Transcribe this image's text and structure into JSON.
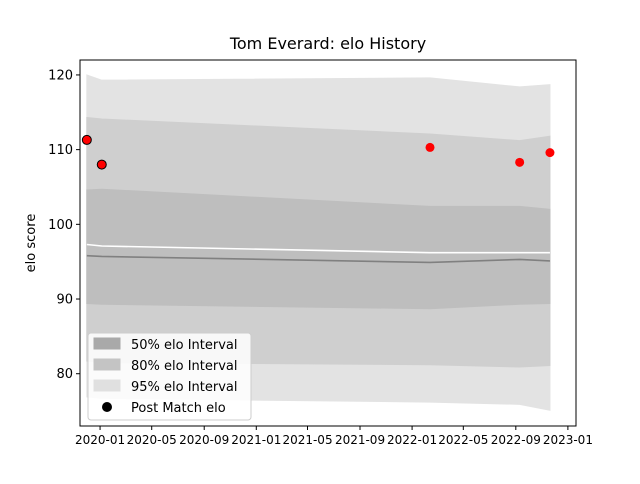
{
  "chart_data": {
    "type": "line",
    "title": "Tom Everard: elo History",
    "xlabel": "",
    "ylabel": "elo score",
    "x_axis_type": "date",
    "xlim": [
      "2019-11-15",
      "2023-01-20"
    ],
    "ylim": [
      73,
      122
    ],
    "x_ticks": [
      "2020-01",
      "2020-05",
      "2020-09",
      "2021-01",
      "2021-05",
      "2021-09",
      "2022-01",
      "2022-05",
      "2022-09",
      "2023-01"
    ],
    "y_ticks": [
      80,
      90,
      100,
      110,
      120
    ],
    "grid": false,
    "legend_position": "lower-left",
    "x": [
      "2019-12-01",
      "2020-01-05",
      "2022-02-12",
      "2022-09-10",
      "2022-11-20"
    ],
    "series": [
      {
        "name": "95% elo Interval",
        "type": "band",
        "color": "#e3e3e3",
        "upper": [
          120,
          119.3,
          119.6,
          118.4,
          118.7
        ],
        "lower": [
          76.9,
          76.7,
          76.2,
          75.9,
          75.1
        ]
      },
      {
        "name": "80% elo Interval",
        "type": "band",
        "color": "#cfcfcf",
        "upper": [
          114.3,
          114.1,
          112.1,
          111.2,
          111.8
        ],
        "lower": [
          81.7,
          81.5,
          81.2,
          80.9,
          81.1
        ]
      },
      {
        "name": "50% elo Interval",
        "type": "band",
        "color": "#bebebe",
        "upper": [
          104.6,
          104.7,
          102.4,
          102.4,
          102.0
        ],
        "lower": [
          89.4,
          89.3,
          88.7,
          89.3,
          89.4
        ]
      },
      {
        "type": "line",
        "color": "#ffffff",
        "values": [
          97.3,
          97.1,
          96.2,
          96.2,
          96.2
        ]
      },
      {
        "type": "line",
        "color": "#808080",
        "values": [
          95.8,
          95.7,
          94.9,
          95.3,
          95.1
        ]
      },
      {
        "name": "Post Match elo",
        "type": "scatter",
        "points": [
          {
            "x": "2019-12-01",
            "y": 111.3,
            "color": "#ff0000",
            "edge": "#000000"
          },
          {
            "x": "2020-01-05",
            "y": 108.0,
            "color": "#ff0000",
            "edge": "#000000"
          },
          {
            "x": "2022-02-12",
            "y": 110.3,
            "color": "#ff0000",
            "edge": "none"
          },
          {
            "x": "2022-09-10",
            "y": 108.3,
            "color": "#ff0000",
            "edge": "none"
          },
          {
            "x": "2022-11-20",
            "y": 109.6,
            "color": "#ff0000",
            "edge": "none"
          }
        ]
      }
    ],
    "legend": [
      {
        "label": "50% elo Interval",
        "swatch": "patch",
        "color": "#a9a9a9"
      },
      {
        "label": "80% elo Interval",
        "swatch": "patch",
        "color": "#c4c4c4"
      },
      {
        "label": "95% elo Interval",
        "swatch": "patch",
        "color": "#e0e0e0"
      },
      {
        "label": "Post Match elo",
        "swatch": "marker",
        "color": "#000000"
      }
    ]
  }
}
